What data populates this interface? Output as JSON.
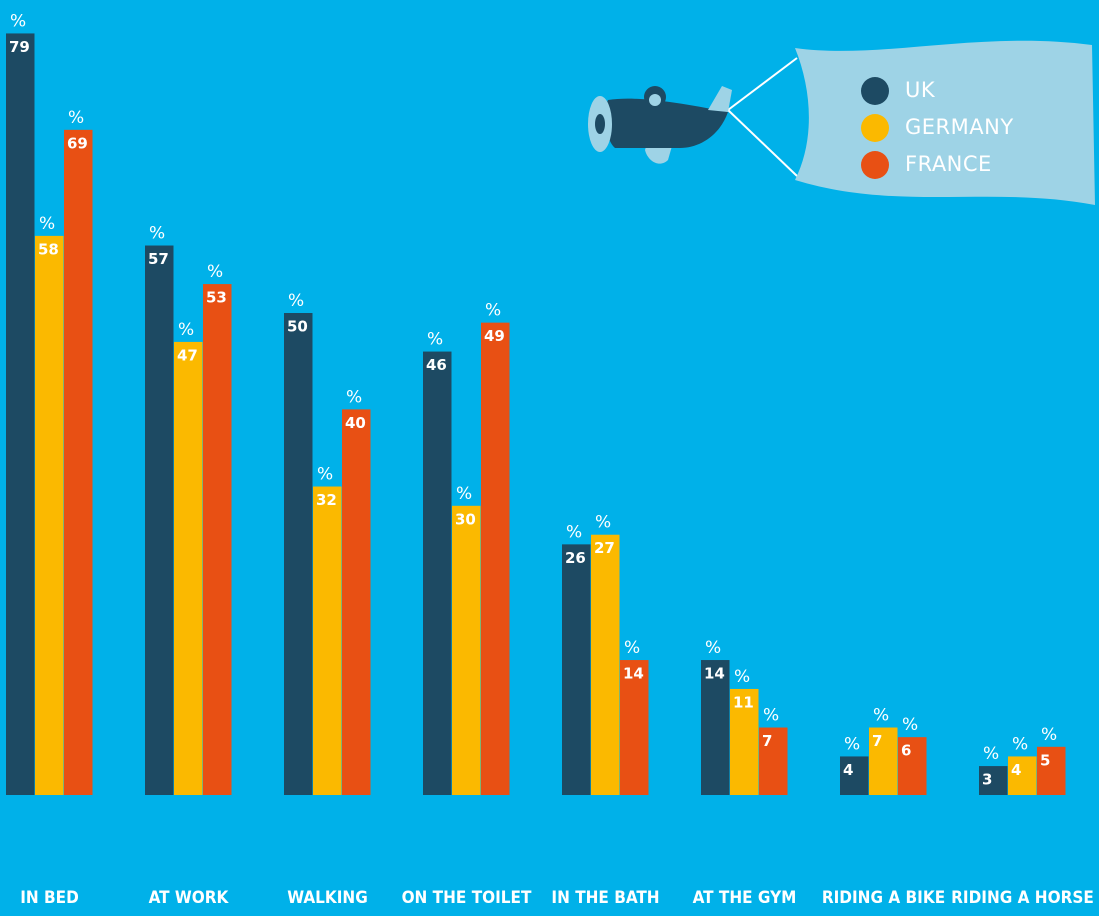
{
  "chart_data": {
    "type": "bar",
    "categories": [
      "IN BED",
      "AT WORK",
      "WALKING",
      "ON THE TOILET",
      "IN THE BATH",
      "AT THE GYM",
      "RIDING A BIKE",
      "RIDING A HORSE"
    ],
    "value_unit": "%",
    "series": [
      {
        "name": "UK",
        "color": "#1d4a63",
        "values": [
          79,
          57,
          50,
          46,
          26,
          14,
          4,
          3
        ]
      },
      {
        "name": "GERMANY",
        "color": "#fbb900",
        "values": [
          58,
          47,
          32,
          30,
          27,
          11,
          7,
          4
        ]
      },
      {
        "name": "FRANCE",
        "color": "#e85014",
        "values": [
          69,
          53,
          40,
          49,
          14,
          7,
          6,
          5
        ]
      }
    ]
  }
}
